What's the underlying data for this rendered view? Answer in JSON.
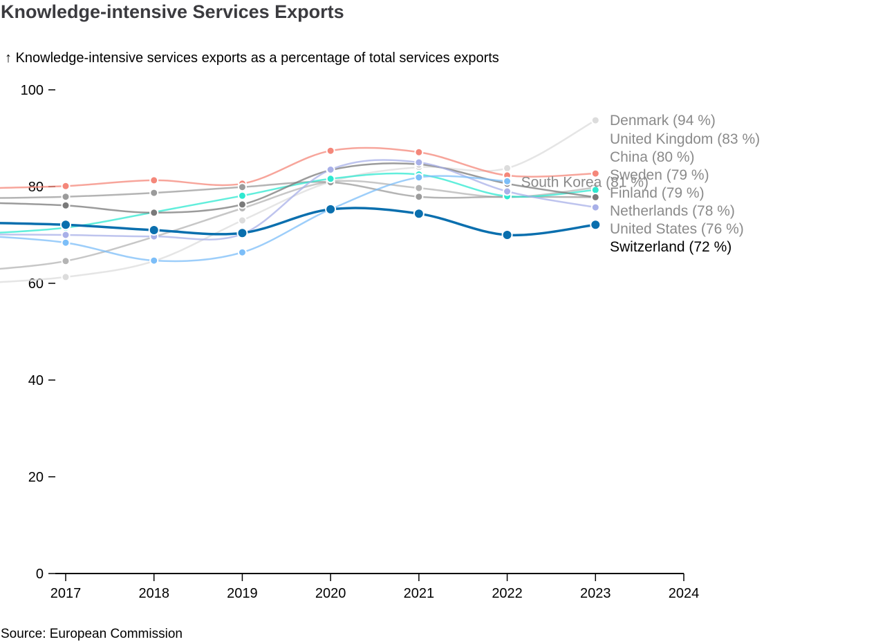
{
  "title": "Knowledge-intensive Services Exports",
  "subtitle_arrow": "↑",
  "subtitle": "Knowledge-intensive services exports as a percentage of total services exports",
  "source": "Source: European Commission",
  "chart_data": {
    "type": "line",
    "title": "Knowledge-intensive Services Exports",
    "xlabel": "",
    "ylabel": "Knowledge-intensive services exports as a percentage of total services exports",
    "x": [
      2017,
      2018,
      2019,
      2020,
      2021,
      2022,
      2023
    ],
    "xticks": [
      "2017",
      "2018",
      "2019",
      "2020",
      "2021",
      "2022",
      "2023",
      "2024"
    ],
    "xlim": [
      2017,
      2024
    ],
    "yticks": [
      "0",
      "20",
      "40",
      "60",
      "80",
      "100"
    ],
    "ylim": [
      0,
      100
    ],
    "grid": false,
    "legend": "inline-right",
    "series": [
      {
        "name": "Denmark",
        "label": "Denmark (94 %)",
        "color": "#dcdcdc",
        "values": [
          61.3,
          64.6,
          73.0,
          81.0,
          84.0,
          83.8,
          93.7
        ]
      },
      {
        "name": "United Kingdom",
        "label": "United Kingdom (83 %)",
        "color": "#f4877a",
        "values": [
          80.1,
          81.3,
          80.6,
          87.4,
          87.1,
          82.3,
          82.7
        ]
      },
      {
        "name": "China",
        "label": "China (80 %)",
        "color": "#b4b4b4",
        "values": [
          64.6,
          69.6,
          75.5,
          81.0,
          79.7,
          77.8,
          79.8
        ]
      },
      {
        "name": "Sweden",
        "label": "Sweden (79 %)",
        "color": "#9b9b9b",
        "values": [
          77.9,
          78.7,
          79.9,
          80.9,
          77.9,
          77.9,
          77.8
        ]
      },
      {
        "name": "Finland",
        "label": "Finland (79 %)",
        "color": "#2ee8d0",
        "values": [
          71.5,
          74.7,
          78.1,
          81.6,
          82.5,
          78.0,
          79.3
        ]
      },
      {
        "name": "Netherlands",
        "label": "Netherlands (78 %)",
        "color": "#7a7a7a",
        "values": [
          76.1,
          74.6,
          76.3,
          83.4,
          84.6,
          80.6,
          77.8
        ]
      },
      {
        "name": "United States",
        "label": "United States (76 %)",
        "color": "#a8b0e8",
        "values": [
          70.0,
          69.7,
          70.2,
          83.5,
          85.0,
          79.0,
          75.7
        ]
      },
      {
        "name": "South Korea",
        "label": "South Korea (81 %)",
        "color": "#7cbef8",
        "values": [
          68.4,
          64.7,
          66.4,
          75.3,
          81.9,
          81.1,
          null
        ]
      },
      {
        "name": "Switzerland",
        "label": "Switzerland (72 %)",
        "color": "#0a6fae",
        "values": [
          72.1,
          71.0,
          70.4,
          75.3,
          74.4,
          70.0,
          72.1
        ],
        "highlight": true
      }
    ]
  }
}
